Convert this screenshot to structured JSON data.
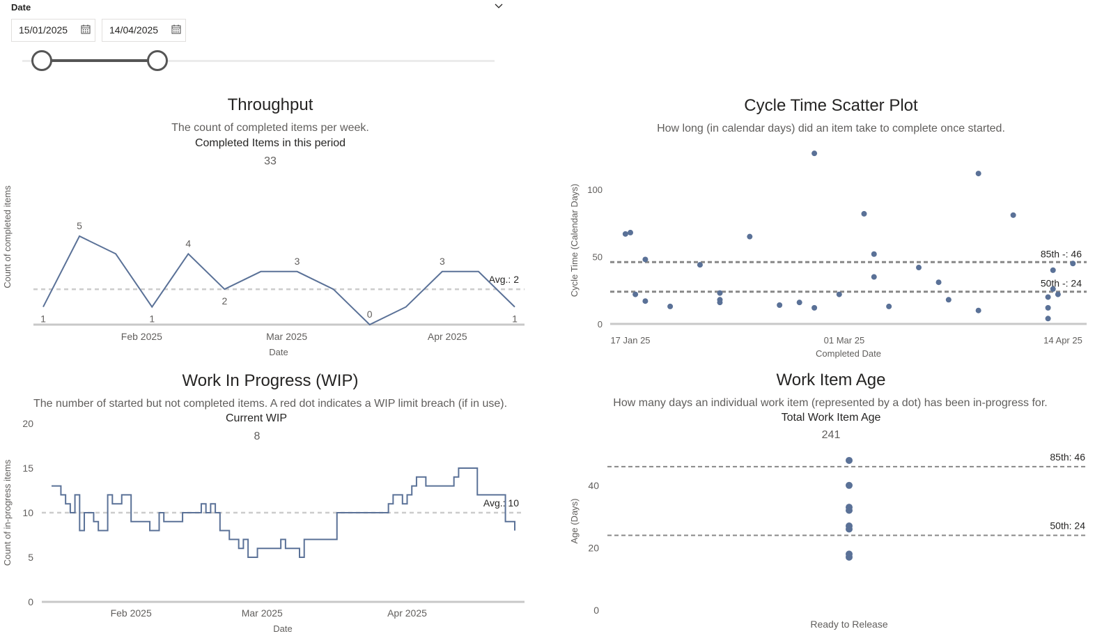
{
  "slicer": {
    "title": "Date",
    "start_date": "15/01/2025",
    "end_date": "14/04/2025"
  },
  "colors": {
    "series": "#5a7197",
    "avg_line": "#cccccc",
    "percentile_line": "#888888",
    "axis": "#c8c8c8"
  },
  "throughput": {
    "title": "Throughput",
    "subtitle": "The count of completed items per week.",
    "kpi_label": "Completed Items in this period",
    "kpi_value": "33"
  },
  "cycle": {
    "title": "Cycle Time Scatter Plot",
    "subtitle": "How long (in calendar days) did an item take to complete once started."
  },
  "wip": {
    "title": "Work In Progress (WIP)",
    "subtitle": "The number of started but not completed items. A red dot indicates a WIP limit breach (if in use).",
    "kpi_label": "Current WIP",
    "kpi_value": "8"
  },
  "age": {
    "title": "Work Item Age",
    "subtitle": "How many days an individual work item (represented by a dot) has been in-progress for.",
    "kpi_label": "Total Work Item Age",
    "kpi_value": "241"
  },
  "chart_data": [
    {
      "id": "throughput",
      "type": "line",
      "xlabel": "Date",
      "ylabel": "Count of completed items",
      "x": [
        "2025-01-13",
        "2025-01-20",
        "2025-01-27",
        "2025-02-03",
        "2025-02-10",
        "2025-02-17",
        "2025-02-24",
        "2025-03-03",
        "2025-03-10",
        "2025-03-17",
        "2025-03-24",
        "2025-03-31",
        "2025-04-07",
        "2025-04-14"
      ],
      "values": [
        1,
        5,
        4,
        1,
        4,
        2,
        3,
        3,
        2,
        0,
        1,
        3,
        3,
        1
      ],
      "data_labels": [
        {
          "index": 0,
          "text": "1"
        },
        {
          "index": 1,
          "text": "5"
        },
        {
          "index": 3,
          "text": "1"
        },
        {
          "index": 4,
          "text": "4"
        },
        {
          "index": 5,
          "text": "2"
        },
        {
          "index": 7,
          "text": "3"
        },
        {
          "index": 9,
          "text": "0"
        },
        {
          "index": 11,
          "text": "3"
        },
        {
          "index": 13,
          "text": "1"
        }
      ],
      "x_ticks": [
        "Feb 2025",
        "Mar 2025",
        "Apr 2025"
      ],
      "avg": 2,
      "avg_label": "Avg.: 2",
      "ylim": [
        0,
        5
      ]
    },
    {
      "id": "cycle",
      "type": "scatter",
      "xlabel": "Completed Date",
      "ylabel": "Cycle Time (Calendar Days)",
      "x_ticks": [
        "17 Jan 25",
        "01 Mar 25",
        "14 Apr 25"
      ],
      "y_ticks": [
        "0",
        "50",
        "100"
      ],
      "ylim": [
        0,
        125
      ],
      "p85": 46,
      "p85_label": "85th -: 46",
      "p50": 24,
      "p50_label": "50th -: 24",
      "points": [
        {
          "x": "2025-01-16",
          "y": 67
        },
        {
          "x": "2025-01-17",
          "y": 68
        },
        {
          "x": "2025-01-18",
          "y": 22
        },
        {
          "x": "2025-01-20",
          "y": 17
        },
        {
          "x": "2025-01-20",
          "y": 48
        },
        {
          "x": "2025-01-25",
          "y": 13
        },
        {
          "x": "2025-01-31",
          "y": 44
        },
        {
          "x": "2025-02-04",
          "y": 18
        },
        {
          "x": "2025-02-04",
          "y": 23
        },
        {
          "x": "2025-02-04",
          "y": 16
        },
        {
          "x": "2025-02-10",
          "y": 65
        },
        {
          "x": "2025-02-16",
          "y": 14
        },
        {
          "x": "2025-02-20",
          "y": 16
        },
        {
          "x": "2025-02-23",
          "y": 12
        },
        {
          "x": "2025-02-23",
          "y": 127
        },
        {
          "x": "2025-02-28",
          "y": 22
        },
        {
          "x": "2025-03-05",
          "y": 82
        },
        {
          "x": "2025-03-07",
          "y": 52
        },
        {
          "x": "2025-03-07",
          "y": 35
        },
        {
          "x": "2025-03-10",
          "y": 13
        },
        {
          "x": "2025-03-16",
          "y": 42
        },
        {
          "x": "2025-03-20",
          "y": 31
        },
        {
          "x": "2025-03-22",
          "y": 18
        },
        {
          "x": "2025-03-28",
          "y": 112
        },
        {
          "x": "2025-03-28",
          "y": 10
        },
        {
          "x": "2025-04-04",
          "y": 81
        },
        {
          "x": "2025-04-11",
          "y": 20
        },
        {
          "x": "2025-04-11",
          "y": 12
        },
        {
          "x": "2025-04-11",
          "y": 4
        },
        {
          "x": "2025-04-12",
          "y": 40
        },
        {
          "x": "2025-04-12",
          "y": 26
        },
        {
          "x": "2025-04-13",
          "y": 22
        },
        {
          "x": "2025-04-16",
          "y": 45
        }
      ]
    },
    {
      "id": "wip",
      "type": "line",
      "xlabel": "Date",
      "ylabel": "Count of in-progress items",
      "x_ticks": [
        "Feb 2025",
        "Mar 2025",
        "Apr 2025"
      ],
      "y_ticks": [
        "0",
        "5",
        "10",
        "15",
        "20"
      ],
      "ylim": [
        0,
        20
      ],
      "avg": 10,
      "avg_label": "Avg.: 10",
      "x": [
        "2025-01-15",
        "2025-01-17",
        "2025-01-18",
        "2025-01-19",
        "2025-01-20",
        "2025-01-21",
        "2025-01-22",
        "2025-01-24",
        "2025-01-25",
        "2025-01-27",
        "2025-01-28",
        "2025-01-30",
        "2025-02-01",
        "2025-02-03",
        "2025-02-04",
        "2025-02-05",
        "2025-02-07",
        "2025-02-08",
        "2025-02-12",
        "2025-02-16",
        "2025-02-17",
        "2025-02-18",
        "2025-02-19",
        "2025-02-20",
        "2025-02-21",
        "2025-02-22",
        "2025-02-23",
        "2025-02-24",
        "2025-02-25",
        "2025-02-26",
        "2025-02-28",
        "2025-03-03",
        "2025-03-05",
        "2025-03-06",
        "2025-03-09",
        "2025-03-10",
        "2025-03-11",
        "2025-03-12",
        "2025-03-15",
        "2025-03-16",
        "2025-03-17",
        "2025-03-28",
        "2025-03-29",
        "2025-03-31",
        "2025-04-01",
        "2025-04-02",
        "2025-04-03",
        "2025-04-05",
        "2025-04-07",
        "2025-04-11",
        "2025-04-12",
        "2025-04-16",
        "2025-04-17",
        "2025-04-22",
        "2025-04-23",
        "2025-04-24"
      ],
      "values": [
        13,
        12,
        11,
        10,
        12,
        8,
        10,
        9,
        8,
        12,
        11,
        12,
        9,
        9,
        9,
        8,
        10,
        9,
        10,
        11,
        10,
        11,
        10,
        8,
        8,
        7,
        7,
        6,
        7,
        5,
        6,
        6,
        7,
        6,
        5,
        7,
        7,
        7,
        7,
        7,
        10,
        11,
        12,
        11,
        12,
        13,
        14,
        13,
        13,
        14,
        15,
        12,
        12,
        9,
        9,
        8
      ]
    },
    {
      "id": "age",
      "type": "scatter",
      "xlabel": "Ready to Release",
      "ylabel": "Age (Days)",
      "y_ticks": [
        "0",
        "20",
        "40"
      ],
      "ylim": [
        0,
        50
      ],
      "p85": 46,
      "p85_label": "85th: 46",
      "p50": 24,
      "p50_label": "50th: 24",
      "points": [
        48,
        40,
        33,
        32,
        27,
        26,
        18,
        17
      ]
    }
  ]
}
